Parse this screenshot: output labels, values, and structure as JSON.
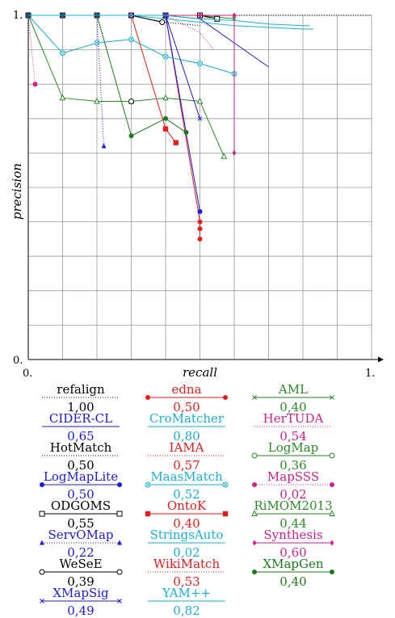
{
  "chart_data": {
    "type": "line",
    "xlabel": "recall",
    "ylabel": "precision",
    "xlim": [
      0,
      1
    ],
    "ylim": [
      0,
      1
    ],
    "x_ticks": [
      "0.",
      "1."
    ],
    "y_ticks": [
      "0.",
      "1."
    ],
    "grid": true,
    "legend_position": "bottom",
    "series": [
      {
        "name": "refalign",
        "score": "1,00",
        "color": "#000000",
        "dash": "1,2",
        "marker": "none",
        "x": [
          0,
          0.1,
          0.2,
          0.3,
          0.4,
          0.5,
          0.6,
          0.7,
          0.8,
          0.9,
          1.0
        ],
        "y": [
          1,
          1,
          1,
          1,
          1,
          1,
          1,
          1,
          1,
          1,
          1
        ]
      },
      {
        "name": "edna",
        "score": "0,50",
        "color": "#e81c1c",
        "dash": "",
        "marker": "circle",
        "x": [
          0,
          0.1,
          0.2,
          0.3,
          0.4,
          0.5,
          0.5
        ],
        "y": [
          1,
          1,
          1,
          1,
          1,
          0.4,
          0.35
        ]
      },
      {
        "name": "AML",
        "score": "0,40",
        "color": "#2a8a2a",
        "dash": "",
        "marker": "x",
        "x": [
          0,
          0.1,
          0.2,
          0.3,
          0.4,
          0.5,
          0.6
        ],
        "y": [
          1,
          1,
          1,
          1,
          1,
          1,
          0.99
        ]
      },
      {
        "name": "CIDER-CL",
        "score": "0,65",
        "color": "#1a1adb",
        "dash": "",
        "marker": "none",
        "x": [
          0,
          0.1,
          0.2,
          0.3,
          0.4,
          0.5,
          0.6,
          0.7
        ],
        "y": [
          1,
          1,
          1,
          1,
          1,
          0.99,
          0.92,
          0.85
        ]
      },
      {
        "name": "CroMatcher",
        "score": "0,80",
        "color": "#1ab0d0",
        "dash": "",
        "marker": "none",
        "x": [
          0,
          0.1,
          0.2,
          0.3,
          0.4,
          0.5,
          0.6,
          0.7,
          0.8,
          0.83
        ],
        "y": [
          1,
          1,
          1,
          1,
          0.99,
          0.98,
          0.97,
          0.965,
          0.96,
          0.96
        ]
      },
      {
        "name": "HerTUDA",
        "score": "0,54",
        "color": "#d0208a",
        "dash": "1,2",
        "marker": "none",
        "x": [
          0,
          0.1,
          0.2,
          0.3,
          0.4,
          0.5,
          0.54
        ],
        "y": [
          1,
          1,
          1,
          1,
          1,
          0.95,
          0.9
        ]
      },
      {
        "name": "HotMatch",
        "score": "0,50",
        "color": "#000000",
        "dash": "1,2",
        "marker": "none",
        "x": [
          0,
          0.1,
          0.2,
          0.3,
          0.4,
          0.5
        ],
        "y": [
          1,
          1,
          1,
          1,
          0.98,
          0.97
        ]
      },
      {
        "name": "IAMA",
        "score": "0,57",
        "color": "#e81c1c",
        "dash": "1,2",
        "marker": "none",
        "x": [
          0,
          0.1,
          0.2,
          0.3,
          0.4,
          0.5,
          0.57
        ],
        "y": [
          1,
          1,
          1,
          1,
          1,
          1,
          1
        ]
      },
      {
        "name": "LogMap",
        "score": "0,36",
        "color": "#2a8a2a",
        "dash": "",
        "marker": "circle-open",
        "x": [
          0,
          0.1,
          0.2,
          0.3,
          0.4,
          0.5
        ],
        "y": [
          1,
          1,
          1,
          1,
          1,
          1
        ]
      },
      {
        "name": "LogMapLite",
        "score": "0,50",
        "color": "#1a1adb",
        "dash": "",
        "marker": "circle",
        "x": [
          0,
          0.1,
          0.2,
          0.3,
          0.4,
          0.5
        ],
        "y": [
          1,
          1,
          1,
          1,
          1,
          0.43
        ]
      },
      {
        "name": "MaasMatch",
        "score": "0,52",
        "color": "#1ab0d0",
        "dash": "",
        "marker": "circle-x",
        "x": [
          0,
          0.1,
          0.2,
          0.3,
          0.4,
          0.5,
          0.6
        ],
        "y": [
          1,
          0.89,
          0.92,
          0.93,
          0.88,
          0.86,
          0.83
        ]
      },
      {
        "name": "MapSSS",
        "score": "0,02",
        "color": "#d0208a",
        "dash": "1,2",
        "marker": "circle",
        "x": [
          0,
          0.02
        ],
        "y": [
          1,
          0.8
        ]
      },
      {
        "name": "ODGOMS",
        "score": "0,55",
        "color": "#000000",
        "dash": "",
        "marker": "square-open",
        "x": [
          0,
          0.1,
          0.2,
          0.3,
          0.4,
          0.5,
          0.55
        ],
        "y": [
          1,
          1,
          1,
          1,
          1,
          1,
          0.99
        ]
      },
      {
        "name": "OntoK",
        "score": "0,40",
        "color": "#e81c1c",
        "dash": "",
        "marker": "square",
        "x": [
          0,
          0.1,
          0.2,
          0.3,
          0.4,
          0.43
        ],
        "y": [
          1,
          1,
          1,
          1,
          0.67,
          0.63
        ]
      },
      {
        "name": "RiMOM2013",
        "score": "0,44",
        "color": "#2a8a2a",
        "dash": "",
        "marker": "triangle-open",
        "x": [
          0,
          0.1,
          0.2,
          0.3,
          0.4,
          0.5,
          0.57
        ],
        "y": [
          1,
          0.76,
          0.75,
          0.75,
          0.76,
          0.75,
          0.59
        ]
      },
      {
        "name": "ServOMap",
        "score": "0,22",
        "color": "#1a1adb",
        "dash": "1,2",
        "marker": "triangle",
        "x": [
          0,
          0.1,
          0.2,
          0.22
        ],
        "y": [
          1,
          1,
          1,
          0.62
        ]
      },
      {
        "name": "StringsAuto",
        "score": "0,02",
        "color": "#1ab0d0",
        "dash": "",
        "marker": "none",
        "x": [
          0,
          0.02
        ],
        "y": [
          1,
          1
        ]
      },
      {
        "name": "Synthesis",
        "score": "0,60",
        "color": "#d0208a",
        "dash": "",
        "marker": "diamond",
        "x": [
          0,
          0.1,
          0.2,
          0.3,
          0.4,
          0.5,
          0.6,
          0.6
        ],
        "y": [
          1,
          1,
          1,
          1,
          1,
          1,
          1,
          0.6
        ]
      },
      {
        "name": "WeSeE",
        "score": "0,39",
        "color": "#000000",
        "dash": "",
        "marker": "circle-open",
        "x": [
          0,
          0.1,
          0.2,
          0.3,
          0.39
        ],
        "y": [
          1,
          1,
          1,
          1,
          0.98
        ]
      },
      {
        "name": "WikiMatch",
        "score": "0,53",
        "color": "#e81c1c",
        "dash": "1,2",
        "marker": "none",
        "x": [
          0,
          0.1,
          0.2,
          0.3,
          0.4,
          0.5,
          0.53
        ],
        "y": [
          1,
          1,
          1,
          1,
          1,
          1,
          0.99
        ]
      },
      {
        "name": "XMapGen",
        "score": "0,40",
        "color": "#1a7a1a",
        "dash": "",
        "marker": "circle",
        "x": [
          0,
          0.1,
          0.2,
          0.3,
          0.4,
          0.46
        ],
        "y": [
          1,
          1,
          1,
          0.65,
          0.7,
          0.66
        ]
      },
      {
        "name": "XMapSig",
        "score": "0,49",
        "color": "#1a1adb",
        "dash": "",
        "marker": "x",
        "x": [
          0,
          0.1,
          0.2,
          0.3,
          0.4,
          0.5
        ],
        "y": [
          1,
          1,
          1,
          1,
          1,
          0.7
        ]
      },
      {
        "name": "YAM++",
        "score": "0,82",
        "color": "#1ab0d0",
        "dash": "",
        "marker": "none",
        "x": [
          0,
          0.1,
          0.2,
          0.3,
          0.4,
          0.5,
          0.6,
          0.7,
          0.8,
          0.82
        ],
        "y": [
          1,
          1,
          1,
          1,
          1,
          0.99,
          0.985,
          0.975,
          0.97,
          0.97
        ]
      }
    ],
    "extra_points": [
      {
        "series": "edna",
        "x": [
          0.5
        ],
        "y": [
          0.38
        ]
      },
      {
        "series": "WeSeE",
        "x": [
          0.3
        ],
        "y": [
          0.75
        ]
      }
    ]
  }
}
